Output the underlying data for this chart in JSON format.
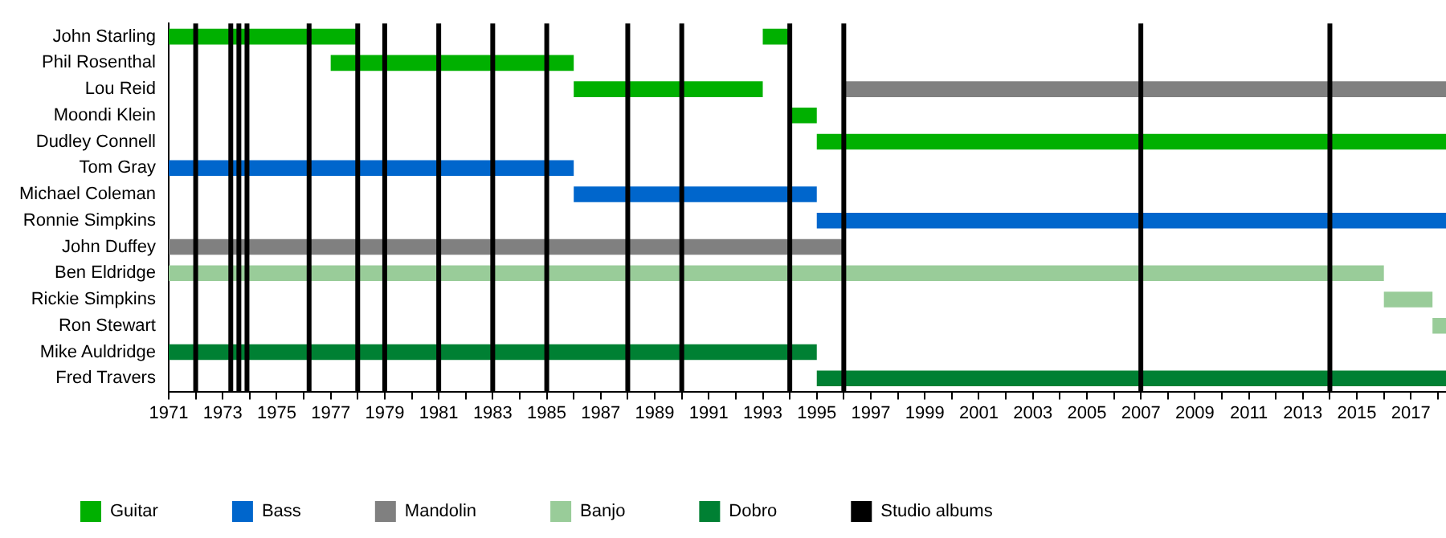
{
  "chart_data": {
    "type": "bar",
    "orientation": "horizontal",
    "categories": [
      "John Starling",
      "Phil Rosenthal",
      "Lou Reid",
      "Moondi Klein",
      "Dudley Connell",
      "Tom Gray",
      "Michael Coleman",
      "Ronnie Simpkins",
      "John Duffey",
      "Ben Eldridge",
      "Rickie Simpkins",
      "Ron Stewart",
      "Mike Auldridge",
      "Fred Travers"
    ],
    "series": [
      {
        "name": "Guitar",
        "color": "#00b000",
        "base": [
          1971,
          1977,
          1986,
          1994,
          1995,
          null,
          null,
          null,
          null,
          null,
          null,
          null,
          null,
          null
        ],
        "values": [
          7,
          9,
          7,
          1,
          23.3,
          null,
          null,
          null,
          null,
          null,
          null,
          null,
          null,
          null
        ]
      },
      {
        "color": "#00b000",
        "base": [
          1993,
          null,
          null,
          null,
          null,
          null,
          null,
          null,
          null,
          null,
          null,
          null,
          null,
          null
        ],
        "values": [
          1,
          null,
          null,
          null,
          null,
          null,
          null,
          null,
          null,
          null,
          null,
          null,
          null,
          null
        ]
      },
      {
        "name": "Bass",
        "color": "#0066cc",
        "base": [
          null,
          null,
          null,
          null,
          null,
          1971,
          1986,
          1995,
          null,
          null,
          null,
          null,
          null,
          null
        ],
        "values": [
          null,
          null,
          null,
          null,
          null,
          15,
          9,
          23.3,
          null,
          null,
          null,
          null,
          null,
          null
        ]
      },
      {
        "name": "Mandolin",
        "color": "#808080",
        "base": [
          null,
          null,
          1996,
          null,
          null,
          null,
          null,
          null,
          1971,
          null,
          null,
          null,
          null,
          null
        ],
        "values": [
          null,
          null,
          22.3,
          null,
          null,
          null,
          null,
          null,
          25,
          null,
          null,
          null,
          null,
          null
        ]
      },
      {
        "name": "Banjo",
        "color": "#99cc99",
        "base": [
          null,
          null,
          null,
          null,
          null,
          null,
          null,
          null,
          null,
          1971,
          2016,
          2017.8,
          null,
          null
        ],
        "values": [
          null,
          null,
          null,
          null,
          null,
          null,
          null,
          null,
          null,
          45,
          1.8,
          0.5,
          null,
          null
        ]
      },
      {
        "name": "Dobro",
        "color": "#008033",
        "base": [
          null,
          null,
          null,
          null,
          null,
          null,
          null,
          null,
          null,
          null,
          null,
          null,
          1971,
          1995
        ],
        "values": [
          null,
          null,
          null,
          null,
          null,
          null,
          null,
          null,
          null,
          null,
          null,
          null,
          24,
          23.3
        ]
      }
    ],
    "xlim": [
      1971,
      2018.3
    ],
    "xticks": [
      1971,
      {
        "value": 1972,
        "label": null
      },
      1973,
      {
        "value": 1974,
        "label": null
      },
      1975,
      {
        "value": 1976,
        "label": null
      },
      1977,
      {
        "value": 1978,
        "label": null
      },
      1979,
      {
        "value": 1980,
        "label": null
      },
      1981,
      {
        "value": 1982,
        "label": null
      },
      1983,
      {
        "value": 1984,
        "label": null
      },
      1985,
      {
        "value": 1986,
        "label": null
      },
      1987,
      {
        "value": 1988,
        "label": null
      },
      1989,
      {
        "value": 1990,
        "label": null
      },
      1991,
      {
        "value": 1992,
        "label": null
      },
      1993,
      {
        "value": 1994,
        "label": null
      },
      1995,
      {
        "value": 1996,
        "label": null
      },
      1997,
      {
        "value": 1998,
        "label": null
      },
      1999,
      {
        "value": 2000,
        "label": null
      },
      2001,
      {
        "value": 2002,
        "label": null
      },
      2003,
      {
        "value": 2004,
        "label": null
      },
      2005,
      {
        "value": 2006,
        "label": null
      },
      2007,
      {
        "value": 2008,
        "label": null
      },
      2009,
      {
        "value": 2010,
        "label": null
      },
      2011,
      {
        "value": 2012,
        "label": null
      },
      2013,
      {
        "value": 2014,
        "label": null
      },
      2015,
      {
        "value": 2016,
        "label": null
      },
      2017,
      {
        "value": 2018,
        "label": null
      }
    ],
    "ref_lines": [
      {
        "axis": "x",
        "value": 1972,
        "label": "Studio albums",
        "color": "#000000"
      },
      {
        "axis": "x",
        "value": 1973.3,
        "color": "#000000"
      },
      {
        "axis": "x",
        "value": 1973.6,
        "color": "#000000"
      },
      {
        "axis": "x",
        "value": 1973.9,
        "color": "#000000"
      },
      {
        "axis": "x",
        "value": 1976.2,
        "color": "#000000"
      },
      {
        "axis": "x",
        "value": 1978,
        "color": "#000000"
      },
      {
        "axis": "x",
        "value": 1979,
        "color": "#000000"
      },
      {
        "axis": "x",
        "value": 1981,
        "color": "#000000"
      },
      {
        "axis": "x",
        "value": 1983,
        "color": "#000000"
      },
      {
        "axis": "x",
        "value": 1985,
        "color": "#000000"
      },
      {
        "axis": "x",
        "value": 1988,
        "color": "#000000"
      },
      {
        "axis": "x",
        "value": 1990,
        "color": "#000000"
      },
      {
        "axis": "x",
        "value": 1994,
        "color": "#000000"
      },
      {
        "axis": "x",
        "value": 1996,
        "color": "#000000"
      },
      {
        "axis": "x",
        "value": 2007,
        "color": "#000000"
      },
      {
        "axis": "x",
        "value": 2014,
        "color": "#000000"
      }
    ],
    "legend": "bottom"
  }
}
